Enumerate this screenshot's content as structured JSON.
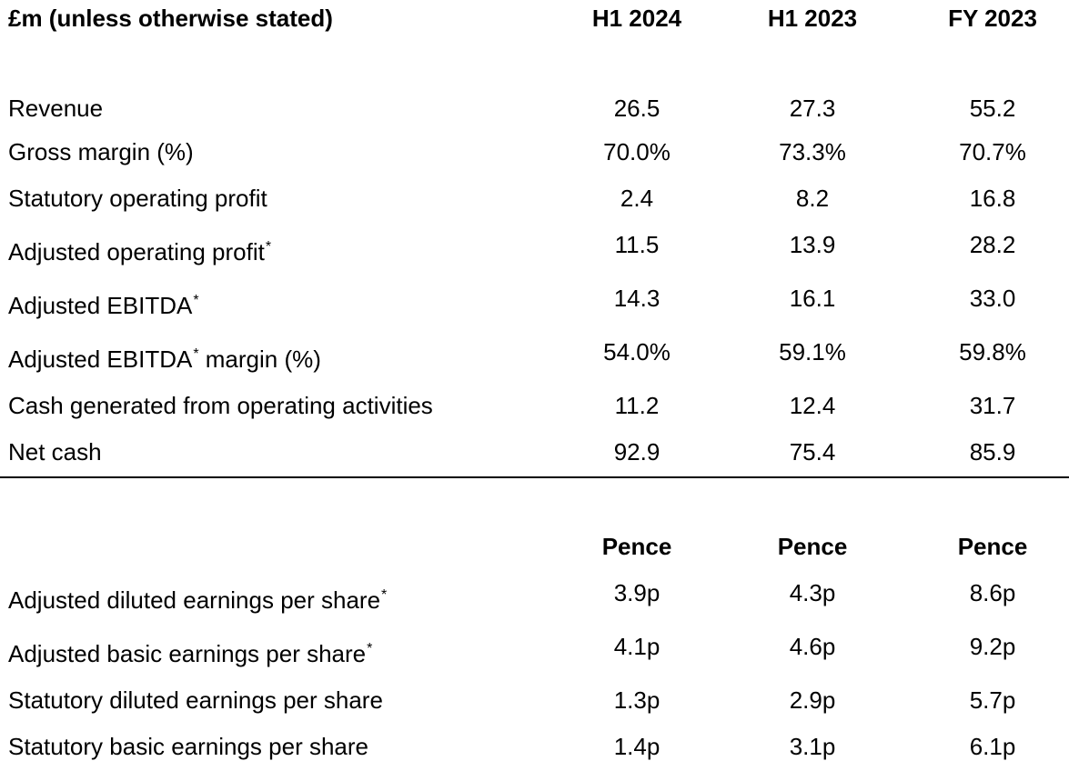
{
  "header": {
    "unit_label": "£m (unless otherwise stated)",
    "col1": "H1 2024",
    "col2": "H1 2023",
    "col3": "FY 2023"
  },
  "rows": [
    {
      "label": "Revenue",
      "star": "",
      "suffix": "",
      "v1": "26.5",
      "v2": "27.3",
      "v3": "55.2"
    },
    {
      "label": "Gross margin (%)",
      "star": "",
      "suffix": "",
      "v1": "70.0%",
      "v2": "73.3%",
      "v3": "70.7%"
    },
    {
      "label": "Statutory operating profit",
      "star": "",
      "suffix": "",
      "v1": "2.4",
      "v2": "8.2",
      "v3": "16.8"
    },
    {
      "label": "Adjusted operating profit",
      "star": "*",
      "suffix": "",
      "v1": "11.5",
      "v2": "13.9",
      "v3": "28.2"
    },
    {
      "label": "Adjusted EBITDA",
      "star": "*",
      "suffix": "",
      "v1": "14.3",
      "v2": "16.1",
      "v3": "33.0"
    },
    {
      "label": "Adjusted EBITDA",
      "star": "*",
      "suffix": " margin (%)",
      "v1": "54.0%",
      "v2": "59.1%",
      "v3": "59.8%"
    },
    {
      "label": "Cash generated from operating activities",
      "star": "",
      "suffix": "",
      "v1": "11.2",
      "v2": "12.4",
      "v3": "31.7"
    },
    {
      "label": "Net cash",
      "star": "",
      "suffix": "",
      "v1": "92.9",
      "v2": "75.4",
      "v3": "85.9"
    }
  ],
  "pence_header": {
    "col1": "Pence",
    "col2": "Pence",
    "col3": "Pence"
  },
  "pence_rows": [
    {
      "label": "Adjusted diluted earnings per share",
      "star": "*",
      "v1": "3.9p",
      "v2": "4.3p",
      "v3": "8.6p"
    },
    {
      "label": "Adjusted basic earnings per share",
      "star": "*",
      "v1": "4.1p",
      "v2": "4.6p",
      "v3": "9.2p"
    },
    {
      "label": "Statutory diluted earnings per share",
      "star": "",
      "v1": "1.3p",
      "v2": "2.9p",
      "v3": "5.7p"
    },
    {
      "label": "Statutory basic earnings per share",
      "star": "",
      "v1": "1.4p",
      "v2": "3.1p",
      "v3": "6.1p"
    }
  ]
}
